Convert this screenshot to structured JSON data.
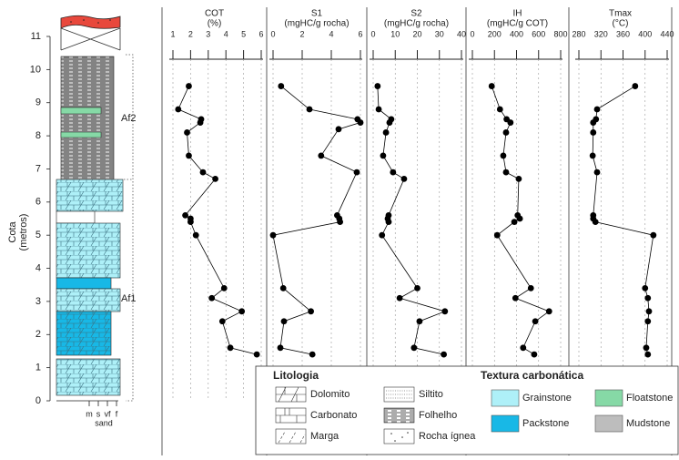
{
  "depth_axis": {
    "label": [
      "Cota",
      "(metros)"
    ],
    "ylim": [
      0,
      11
    ],
    "yticks": [
      0,
      1,
      2,
      3,
      4,
      5,
      6,
      7,
      8,
      9,
      10,
      11
    ]
  },
  "column": {
    "units": [
      "Af2",
      "Af1"
    ],
    "grain_sizes": [
      "m",
      "s",
      "vf",
      "f"
    ],
    "grain_label": "sand"
  },
  "chart_data": [
    {
      "type": "line",
      "title": "COT",
      "unit": "(%)",
      "xlim": [
        1,
        6
      ],
      "xticks": [
        1,
        2,
        3,
        4,
        5,
        6
      ],
      "color": "#000000",
      "depth": [
        9.5,
        8.8,
        8.5,
        8.4,
        8.1,
        7.4,
        6.9,
        6.7,
        5.6,
        5.5,
        5.4,
        5.0,
        3.4,
        3.1,
        2.7,
        2.4,
        1.6,
        1.4
      ],
      "values": [
        1.9,
        1.3,
        2.6,
        2.55,
        1.8,
        1.9,
        2.7,
        3.4,
        1.7,
        2.0,
        2.0,
        2.3,
        3.9,
        3.2,
        4.9,
        3.8,
        4.25,
        5.75
      ]
    },
    {
      "type": "line",
      "title": "S1",
      "unit": "(mgHC/g rocha)",
      "xlim": [
        0,
        6
      ],
      "xticks": [
        0,
        2,
        4,
        6
      ],
      "color": "#000000",
      "depth": [
        9.5,
        8.8,
        8.5,
        8.4,
        8.2,
        7.4,
        6.9,
        5.6,
        5.5,
        5.4,
        5.0,
        3.4,
        2.7,
        2.4,
        1.6,
        1.4
      ],
      "values": [
        0.55,
        2.5,
        5.8,
        6.0,
        4.5,
        3.3,
        5.75,
        4.4,
        4.55,
        4.6,
        0,
        0.7,
        2.6,
        0.75,
        0.5,
        2.7
      ]
    },
    {
      "type": "line",
      "title": "S2",
      "unit": "(mgHC/g rocha)",
      "xlim": [
        0,
        40
      ],
      "xticks": [
        0,
        10,
        20,
        30,
        40
      ],
      "color": "#000000",
      "depth": [
        9.5,
        8.8,
        8.5,
        8.4,
        8.1,
        7.4,
        6.9,
        6.7,
        5.6,
        5.5,
        5.4,
        5.0,
        3.4,
        3.1,
        2.7,
        2.4,
        1.6,
        1.4
      ],
      "values": [
        2,
        2.5,
        8.2,
        7.4,
        5.8,
        4.5,
        9,
        14,
        7,
        6.6,
        7,
        4,
        20,
        12,
        32.5,
        21,
        18.5,
        32
      ]
    },
    {
      "type": "line",
      "title": "IH",
      "unit": "(mgHC/g COT)",
      "xlim": [
        0,
        800
      ],
      "xticks": [
        0,
        200,
        400,
        600,
        800
      ],
      "color": "#000000",
      "depth": [
        9.5,
        8.8,
        8.5,
        8.4,
        8.1,
        7.4,
        6.9,
        6.7,
        5.6,
        5.5,
        5.4,
        5.0,
        3.4,
        3.1,
        2.7,
        2.4,
        1.6,
        1.4
      ],
      "values": [
        175,
        250,
        310,
        345,
        305,
        280,
        305,
        420,
        410,
        430,
        380,
        225,
        530,
        390,
        695,
        570,
        460,
        560
      ]
    },
    {
      "type": "line",
      "title": "Tmax",
      "unit": "(°C)",
      "xlim": [
        280,
        440
      ],
      "xticks": [
        280,
        320,
        360,
        400,
        440
      ],
      "color": "#000000",
      "depth": [
        9.5,
        8.8,
        8.5,
        8.4,
        8.1,
        7.4,
        6.9,
        5.6,
        5.5,
        5.4,
        5.0,
        3.4,
        3.1,
        2.7,
        2.4,
        1.6,
        1.4
      ],
      "values": [
        382,
        313,
        311,
        306,
        306,
        305,
        313,
        306,
        306,
        310,
        415,
        400,
        405,
        407,
        405,
        402,
        405
      ]
    }
  ],
  "legend": {
    "lithology_title": "Litologia",
    "lithology": [
      "Dolomito",
      "Carbonato",
      "Marga",
      "Siltito",
      "Folhelho",
      "Rocha ígnea"
    ],
    "texture_title": "Textura carbonática",
    "texture": [
      {
        "name": "Grainstone",
        "color": "#aef0f8"
      },
      {
        "name": "Packstone",
        "color": "#18b8e6"
      },
      {
        "name": "Floatstone",
        "color": "#86d9a6"
      },
      {
        "name": "Mudstone",
        "color": "#bdbdbd"
      }
    ]
  }
}
